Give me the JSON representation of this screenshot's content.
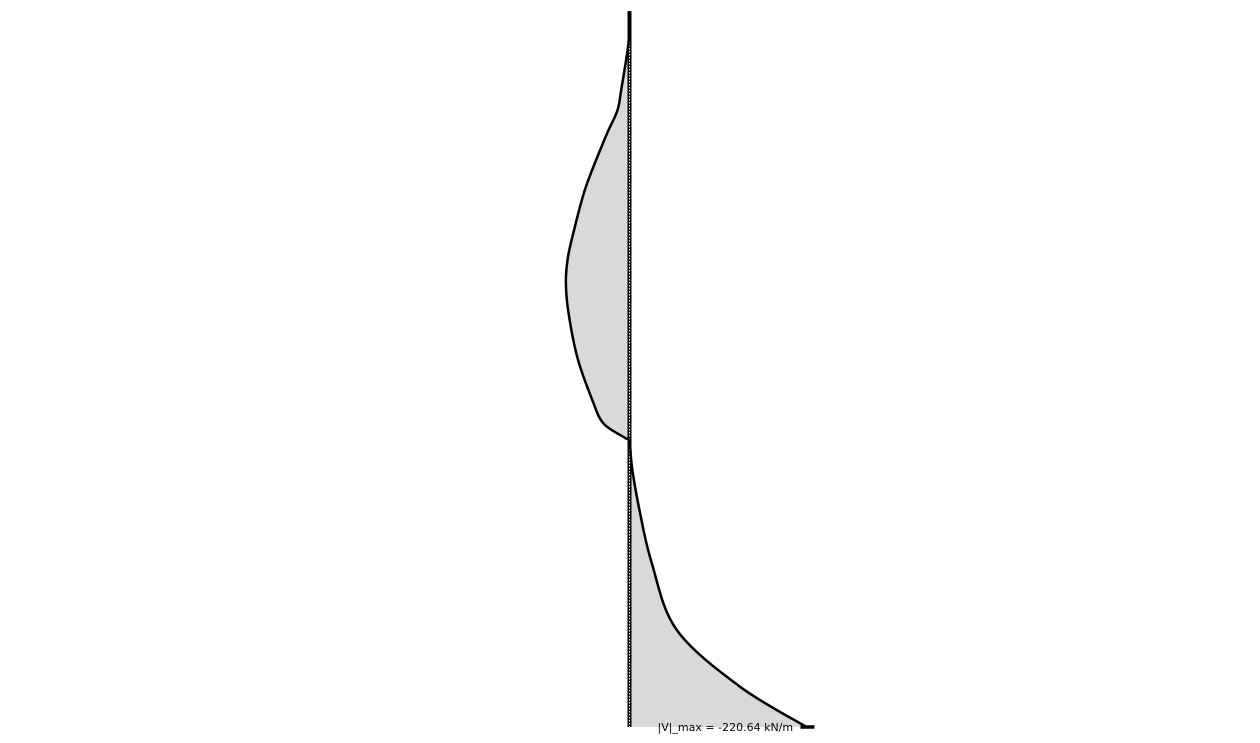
{
  "chart_data": {
    "type": "area",
    "title": "",
    "xlabel": "",
    "ylabel": "",
    "axis_orientation": "vertical",
    "x_sign_convention": "negative values drawn to the right of the axis",
    "depth_range": [
      0,
      100
    ],
    "x_range": [
      -220.64,
      220.64
    ],
    "points": [
      {
        "depth": 0.0,
        "value": 0.0
      },
      {
        "depth": 1.3,
        "value": 0.3
      },
      {
        "depth": 4.7,
        "value": 1.5
      },
      {
        "depth": 10.9,
        "value": 10.2
      },
      {
        "depth": 13.9,
        "value": 15.1
      },
      {
        "depth": 17.5,
        "value": 29.5
      },
      {
        "depth": 24.6,
        "value": 54.5
      },
      {
        "depth": 31.0,
        "value": 70.0
      },
      {
        "depth": 34.5,
        "value": 76.9
      },
      {
        "depth": 37.8,
        "value": 79.3
      },
      {
        "depth": 41.8,
        "value": 76.5
      },
      {
        "depth": 48.4,
        "value": 65.0
      },
      {
        "depth": 54.3,
        "value": 46.5
      },
      {
        "depth": 57.6,
        "value": 32.5
      },
      {
        "depth": 59.6,
        "value": 6.0
      },
      {
        "depth": 60.2,
        "value": 0.0
      },
      {
        "depth": 63.9,
        "value": -3.3
      },
      {
        "depth": 69.7,
        "value": -12.4
      },
      {
        "depth": 77.0,
        "value": -27.5
      },
      {
        "depth": 86.4,
        "value": -58.6
      },
      {
        "depth": 94.3,
        "value": -136.9
      },
      {
        "depth": 100.0,
        "value": -220.64
      }
    ],
    "annotations": [
      {
        "text": "|V|_max = -220.64 kN/m",
        "value": -220.64,
        "unit": "kN/m"
      }
    ],
    "grid": false,
    "legend": "none"
  },
  "colors": {
    "fill": "#d9d9d9",
    "outline": "#000000",
    "member": "#000000",
    "member_hatch": "#ffffff",
    "background": "#ffffff"
  }
}
